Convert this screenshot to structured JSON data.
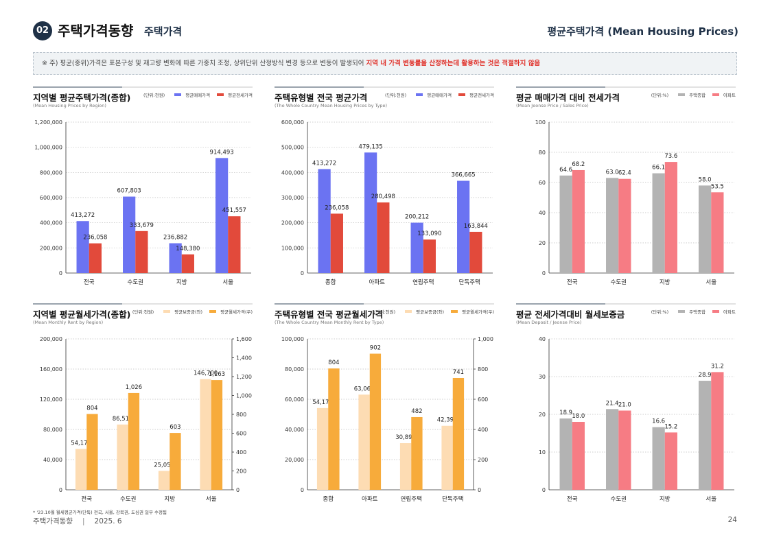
{
  "header": {
    "badge": "02",
    "title": "주택가격동향",
    "subtitle": "주택가격",
    "right_title": "평균주택가격 (Mean Housing Prices)"
  },
  "notice": {
    "text_normal": "※ 주) 평균(중위)가격은 표본구성 및 재고량 변화에 따른 가중치 조정, 상위단위 산정방식 변경 등으로 변동이 발생되어 ",
    "text_red": "지역 내 가격 변동률을 산정하는데 활용하는 것은 적절하지 않음"
  },
  "colors": {
    "blue": "#6b73f2",
    "red": "#e24a3b",
    "gray": "#b3b3b3",
    "pink": "#f67c84",
    "lightorange": "#fddcb3",
    "orange": "#f7ab3b"
  },
  "chart_data": [
    {
      "id": "c1",
      "type": "bar",
      "title": "지역별 평균주택가격(종합)",
      "subtitle": "(Mean Housing Prices by Region)",
      "unit": "(단위:천원)",
      "categories": [
        "전국",
        "수도권",
        "지방",
        "서울"
      ],
      "series": [
        {
          "name": "평균매매가격",
          "color": "#6b73f2",
          "values": [
            413272,
            607803,
            236882,
            914493
          ],
          "labels": [
            "413,272",
            "607,803",
            "236,882",
            "914,493"
          ],
          "axis": "left"
        },
        {
          "name": "평균전세가격",
          "color": "#e24a3b",
          "values": [
            236058,
            333679,
            148380,
            451557
          ],
          "labels": [
            "236,058",
            "333,679",
            "148,380",
            "451,557"
          ],
          "axis": "left"
        }
      ],
      "ylim": [
        0,
        1200000
      ],
      "yticks": [
        "0",
        "200,000",
        "400,000",
        "600,000",
        "800,000",
        "1,000,000",
        "1,200,000"
      ]
    },
    {
      "id": "c2",
      "type": "bar",
      "title": "주택유형별 전국 평균가격",
      "subtitle": "(The Whole Country Mean Housing Prices by Type)",
      "unit": "(단위:천원)",
      "categories": [
        "종합",
        "아파트",
        "연립주택",
        "단독주택"
      ],
      "series": [
        {
          "name": "평균매매가격",
          "color": "#6b73f2",
          "values": [
            413272,
            479135,
            200212,
            366665
          ],
          "labels": [
            "413,272",
            "479,135",
            "200,212",
            "366,665"
          ],
          "axis": "left"
        },
        {
          "name": "평균전세가격",
          "color": "#e24a3b",
          "values": [
            236058,
            280498,
            133090,
            163844
          ],
          "labels": [
            "236,058",
            "280,498",
            "133,090",
            "163,844"
          ],
          "axis": "left"
        }
      ],
      "ylim": [
        0,
        600000
      ],
      "yticks": [
        "0",
        "100,000",
        "200,000",
        "300,000",
        "400,000",
        "500,000",
        "600,000"
      ]
    },
    {
      "id": "c3",
      "type": "bar",
      "title": "평균 매매가격 대비 전세가격",
      "subtitle": "(Mean Jeonse Price / Sales Price)",
      "unit": "(단위:%)",
      "categories": [
        "전국",
        "수도권",
        "지방",
        "서울"
      ],
      "series": [
        {
          "name": "주택종합",
          "color": "#b3b3b3",
          "values": [
            64.6,
            63.0,
            66.1,
            58.0
          ],
          "labels": [
            "64.6",
            "63.0",
            "66.1",
            "58.0"
          ],
          "axis": "left"
        },
        {
          "name": "아파트",
          "color": "#f67c84",
          "values": [
            68.2,
            62.4,
            73.6,
            53.5
          ],
          "labels": [
            "68.2",
            "62.4",
            "73.6",
            "53.5"
          ],
          "axis": "left"
        }
      ],
      "ylim": [
        0,
        100
      ],
      "yticks": [
        "0",
        "20",
        "40",
        "60",
        "80",
        "100"
      ]
    },
    {
      "id": "c4",
      "type": "bar",
      "title": "지역별 평균월세가격(종합)",
      "subtitle": "(Mean Monthly Rent by Region)",
      "unit": "(단위:천원)",
      "categories": [
        "전국",
        "수도권",
        "지방",
        "서울"
      ],
      "series": [
        {
          "name": "평균보증금(좌)",
          "color": "#fddcb3",
          "values": [
            54172,
            86514,
            25053,
            146700
          ],
          "labels": [
            "54,172",
            "86,514",
            "25,053",
            "146,700"
          ],
          "axis": "left"
        },
        {
          "name": "평균월세가격(우)",
          "color": "#f7ab3b",
          "values": [
            804,
            1026,
            603,
            1163
          ],
          "labels": [
            "804",
            "1,026",
            "603",
            "1,163"
          ],
          "axis": "right"
        }
      ],
      "ylim": [
        0,
        200000
      ],
      "yticks": [
        "0",
        "40,000",
        "80,000",
        "120,000",
        "160,000",
        "200,000"
      ],
      "y2lim": [
        0,
        1600
      ],
      "y2ticks": [
        "0",
        "200",
        "400",
        "600",
        "800",
        "1,000",
        "1,200",
        "1,400",
        "1,600"
      ]
    },
    {
      "id": "c5",
      "type": "bar",
      "title": "주택유형별 전국 평균월세가격",
      "subtitle": "(The Whole Country Mean Monthly Rent by Type)",
      "unit": "(단위:천원)",
      "categories": [
        "종합",
        "아파트",
        "연립주택",
        "단독주택"
      ],
      "series": [
        {
          "name": "평균보증금(좌)",
          "color": "#fddcb3",
          "values": [
            54172,
            63065,
            30895,
            42390
          ],
          "labels": [
            "54,172",
            "63,065",
            "30,895",
            "42,390"
          ],
          "axis": "left"
        },
        {
          "name": "평균월세가격(우)",
          "color": "#f7ab3b",
          "values": [
            804,
            902,
            482,
            741
          ],
          "labels": [
            "804",
            "902",
            "482",
            "741"
          ],
          "axis": "right"
        }
      ],
      "ylim": [
        0,
        100000
      ],
      "yticks": [
        "0",
        "20,000",
        "40,000",
        "60,000",
        "80,000",
        "100,000"
      ],
      "y2lim": [
        0,
        1000
      ],
      "y2ticks": [
        "0",
        "200",
        "400",
        "600",
        "800",
        "1,000"
      ]
    },
    {
      "id": "c6",
      "type": "bar",
      "title": "평균 전세가격대비 월세보증금",
      "subtitle": "(Mean Deposit / Jeonse Price)",
      "unit": "(단위:%)",
      "categories": [
        "전국",
        "수도권",
        "지방",
        "서울"
      ],
      "series": [
        {
          "name": "주택종합",
          "color": "#b3b3b3",
          "values": [
            18.9,
            21.4,
            16.6,
            28.9
          ],
          "labels": [
            "18.9",
            "21.4",
            "16.6",
            "28.9"
          ],
          "axis": "left"
        },
        {
          "name": "아파트",
          "color": "#f67c84",
          "values": [
            18.0,
            21.0,
            15.2,
            31.2
          ],
          "labels": [
            "18.0",
            "21.0",
            "15.2",
            "31.2"
          ],
          "axis": "left"
        }
      ],
      "ylim": [
        0,
        40
      ],
      "yticks": [
        "0",
        "10",
        "20",
        "30",
        "40"
      ]
    }
  ],
  "footnote": "* '23.10월 월세평균가격(단독) 전국, 서울, 강북권, 도심권 일부 수정됨",
  "footer": {
    "publication": "주택가격동향",
    "separator": "|",
    "date": "2025. 6",
    "page": "24"
  }
}
